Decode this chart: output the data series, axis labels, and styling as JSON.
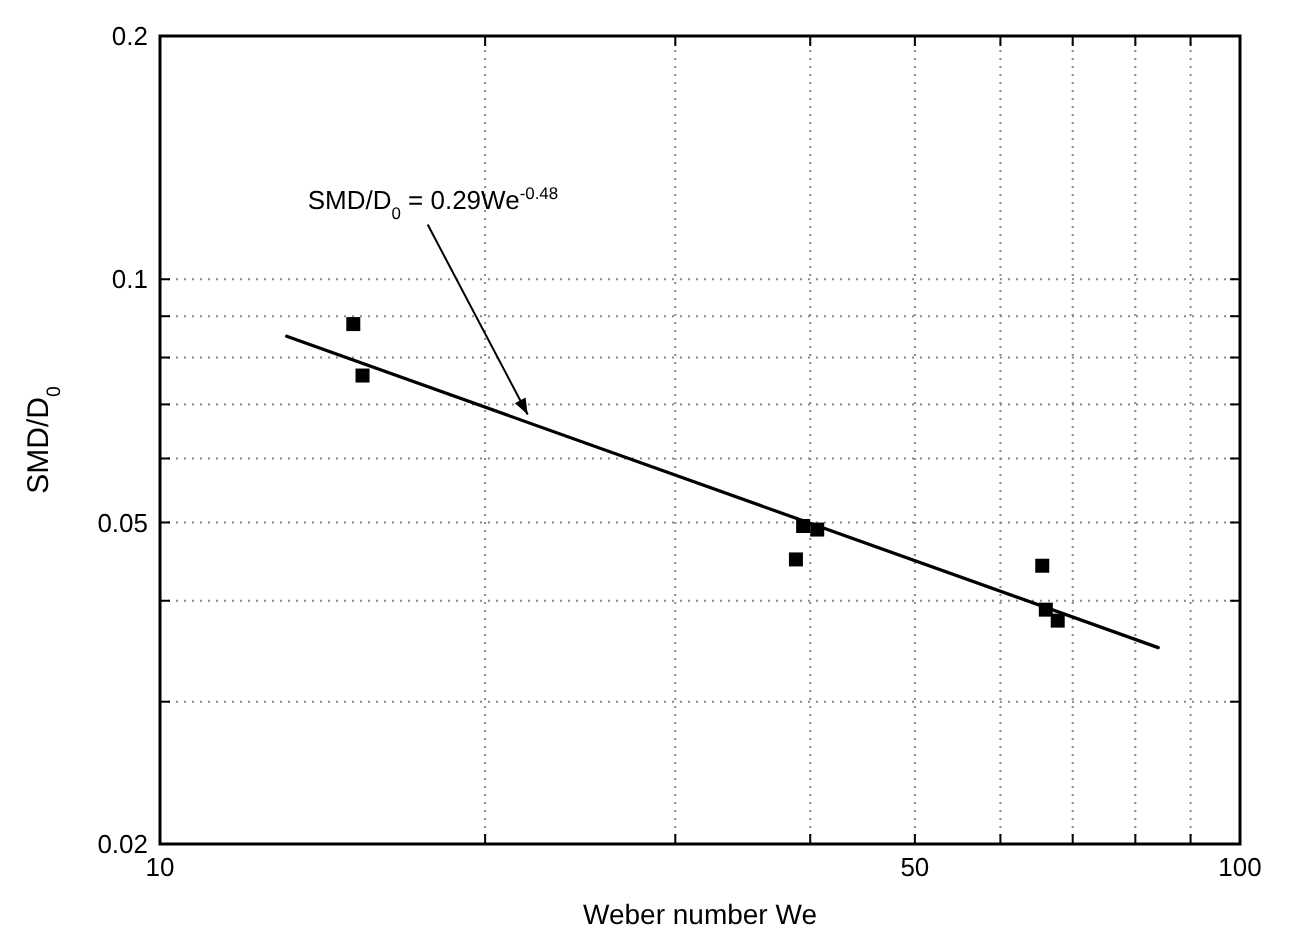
{
  "chart_data": {
    "type": "scatter",
    "xlabel": "Weber number We",
    "ylabel": "SMD/D$_{0}$",
    "log": "xy",
    "grid": true,
    "marker": "square",
    "xlim": [
      10,
      100
    ],
    "ylim": [
      0.02,
      0.2
    ],
    "xticks": [
      10,
      {
        "value": 20,
        "label": null
      },
      {
        "value": 30,
        "label": null
      },
      {
        "value": 40,
        "label": null
      },
      50,
      {
        "value": 60,
        "label": null
      },
      {
        "value": 70,
        "label": null
      },
      {
        "value": 80,
        "label": null
      },
      {
        "value": 90,
        "label": null
      },
      100
    ],
    "yticks": [
      0.02,
      {
        "value": 0.03,
        "label": null
      },
      {
        "value": 0.04,
        "label": null
      },
      0.05,
      {
        "value": 0.06,
        "label": null
      },
      {
        "value": 0.07,
        "label": null
      },
      {
        "value": 0.08,
        "label": null
      },
      {
        "value": 0.09,
        "label": null
      },
      0.1,
      0.2
    ],
    "series": [
      {
        "color": "#000000",
        "x": [
          15.1,
          15.4,
          38.8,
          39.4,
          40.6,
          65.6,
          66.1,
          67.8
        ],
        "values": [
          0.088,
          0.076,
          0.045,
          0.0495,
          0.049,
          0.0442,
          0.039,
          0.0378
        ]
      },
      {
        "type": "line",
        "marker": "none",
        "color": "#000000",
        "x": [
          13.1,
          84
        ],
        "values": [
          0.085,
          0.035
        ]
      }
    ],
    "annotations": [
      {
        "text": "SMD/D$_{0}$ = 0.29We$^{-0.48}$",
        "x": 21.9,
        "y": 0.068
      }
    ]
  }
}
